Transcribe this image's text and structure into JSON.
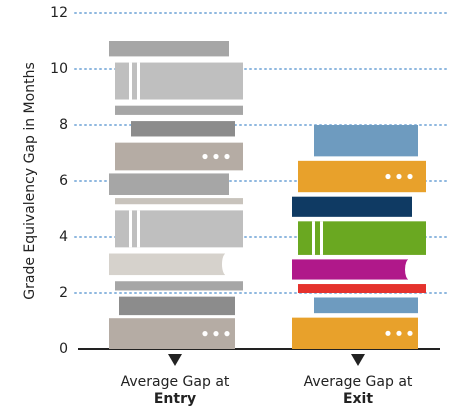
{
  "chart_data": {
    "type": "book-stack",
    "y_axis_label": "Grade Equivalency Gap in Months",
    "categories": [
      "Average Gap at Entry",
      "Average Gap at Exit"
    ],
    "values": [
      11,
      8
    ],
    "ylim": [
      0,
      12
    ],
    "yticks": [
      0,
      2,
      4,
      6,
      8,
      10,
      12
    ],
    "grid": true
  }
}
